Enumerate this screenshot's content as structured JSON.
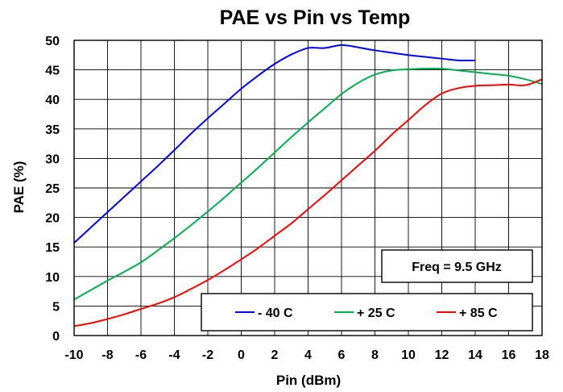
{
  "chart_data": {
    "type": "line",
    "title": "PAE vs Pin vs Temp",
    "xlabel": "Pin (dBm)",
    "ylabel": "PAE (%)",
    "xlim": [
      -10,
      18
    ],
    "ylim": [
      0,
      50
    ],
    "xticks": [
      -10,
      -8,
      -6,
      -4,
      -2,
      0,
      2,
      4,
      6,
      8,
      10,
      12,
      14,
      16,
      18
    ],
    "yticks": [
      0,
      5,
      10,
      15,
      20,
      25,
      30,
      35,
      40,
      45,
      50
    ],
    "grid": true,
    "legend_position": "bottom-right",
    "annotation": "Freq = 9.5 GHz",
    "series": [
      {
        "name": "- 40 C",
        "color": "#0000ff",
        "x": [
          -10,
          -9,
          -8,
          -7,
          -6,
          -5,
          -4,
          -3,
          -2,
          -1,
          0,
          1,
          2,
          3,
          4,
          5,
          6,
          7,
          8,
          9,
          10,
          11,
          12,
          13,
          14
        ],
        "y": [
          15.7,
          18.3,
          20.9,
          23.5,
          26.1,
          28.7,
          31.4,
          34.2,
          36.8,
          39.3,
          41.8,
          44.0,
          46.0,
          47.6,
          48.7,
          48.7,
          49.2,
          48.8,
          48.3,
          47.9,
          47.5,
          47.2,
          46.9,
          46.6,
          46.6
        ]
      },
      {
        "name": "+ 25 C",
        "color": "#00b050",
        "x": [
          -10,
          -9,
          -8,
          -7,
          -6,
          -5,
          -4,
          -3,
          -2,
          -1,
          0,
          1,
          2,
          3,
          4,
          5,
          6,
          7,
          8,
          9,
          10,
          11,
          12,
          13,
          14,
          15,
          16,
          17,
          18
        ],
        "y": [
          6.1,
          7.7,
          9.3,
          10.8,
          12.4,
          14.4,
          16.5,
          18.7,
          21.0,
          23.4,
          25.9,
          28.4,
          31.0,
          33.6,
          36.1,
          38.5,
          40.9,
          42.8,
          44.2,
          44.9,
          45.1,
          45.2,
          45.2,
          44.9,
          44.6,
          44.3,
          44.0,
          43.4,
          42.6
        ]
      },
      {
        "name": "+ 85 C",
        "color": "#ff0000",
        "x": [
          -10,
          -9,
          -8,
          -7,
          -6,
          -5,
          -4,
          -3,
          -2,
          -1,
          0,
          1,
          2,
          3,
          4,
          5,
          6,
          7,
          8,
          9,
          10,
          11,
          12,
          13,
          14,
          15,
          16,
          17,
          18
        ],
        "y": [
          1.6,
          2.1,
          2.8,
          3.6,
          4.5,
          5.4,
          6.5,
          7.9,
          9.4,
          11.1,
          12.9,
          14.8,
          16.9,
          19.0,
          21.4,
          23.8,
          26.3,
          28.8,
          31.3,
          34.0,
          36.5,
          39.0,
          41.0,
          41.9,
          42.3,
          42.4,
          42.5,
          42.4,
          43.4
        ]
      }
    ]
  }
}
